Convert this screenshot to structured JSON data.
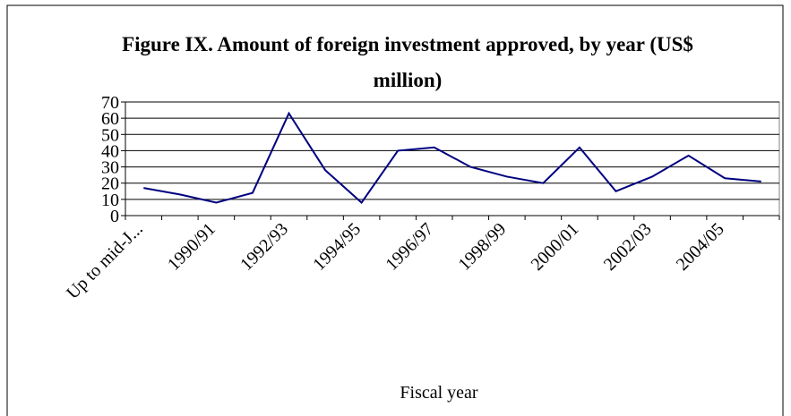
{
  "chart_data": {
    "type": "line",
    "title": "Figure IX. Amount of foreign investment approved, by year (US$ million)",
    "x_label": "Fiscal year",
    "categories": [
      "Up to mid-J...",
      null,
      "1990/91",
      null,
      "1992/93",
      null,
      "1994/95",
      null,
      "1996/97",
      null,
      "1998/99",
      null,
      "2000/01",
      null,
      "2002/03",
      null,
      "2004/05",
      null
    ],
    "values": [
      17,
      13,
      8,
      14,
      63,
      28,
      8,
      40,
      42,
      30,
      24,
      20,
      42,
      15,
      24,
      37,
      23,
      21
    ],
    "color": "#000080",
    "ylim": [
      0,
      70
    ],
    "yticks": [
      0,
      10,
      20,
      30,
      40,
      50,
      60,
      70
    ],
    "grid": true
  }
}
